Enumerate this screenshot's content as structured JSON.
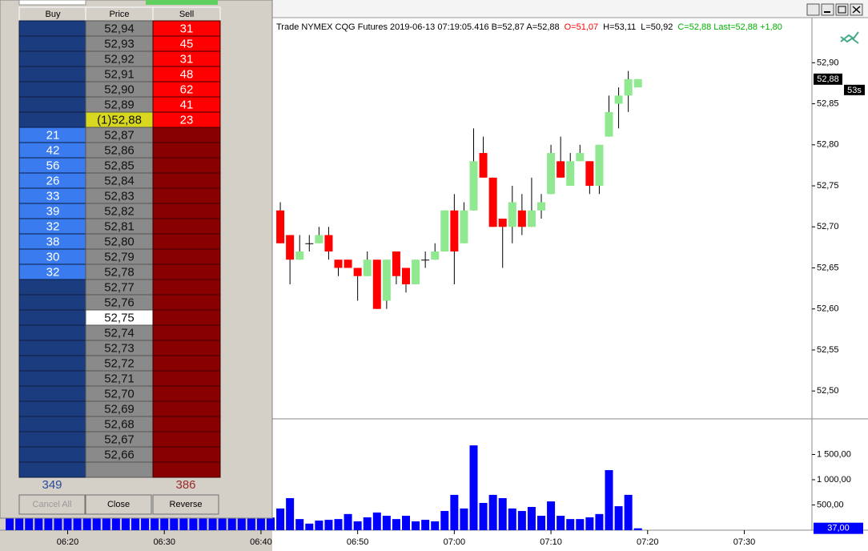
{
  "dom": {
    "columns": [
      "Buy",
      "Price",
      "Sell"
    ],
    "rows": [
      {
        "price": "52,94",
        "sell": 31
      },
      {
        "price": "52,93",
        "sell": 45
      },
      {
        "price": "52,92",
        "sell": 31
      },
      {
        "price": "52,91",
        "sell": 48
      },
      {
        "price": "52,90",
        "sell": 62
      },
      {
        "price": "52,89",
        "sell": 41
      },
      {
        "price": "(1)52,88",
        "sell": 23,
        "current": true
      },
      {
        "buy": 21,
        "price": "52,87"
      },
      {
        "buy": 42,
        "price": "52,86"
      },
      {
        "buy": 56,
        "price": "52,85"
      },
      {
        "buy": 26,
        "price": "52,84"
      },
      {
        "buy": 33,
        "price": "52,83"
      },
      {
        "buy": 39,
        "price": "52,82"
      },
      {
        "buy": 32,
        "price": "52,81"
      },
      {
        "buy": 38,
        "price": "52,80"
      },
      {
        "buy": 30,
        "price": "52,79"
      },
      {
        "buy": 32,
        "price": "52,78"
      },
      {
        "price": "52,77"
      },
      {
        "price": "52,76"
      },
      {
        "price": "52,75",
        "selected": true
      },
      {
        "price": "52,74"
      },
      {
        "price": "52,73"
      },
      {
        "price": "52,72"
      },
      {
        "price": "52,71"
      },
      {
        "price": "52,70"
      },
      {
        "price": "52,69"
      },
      {
        "price": "52,68"
      },
      {
        "price": "52,67"
      },
      {
        "price": "52,66"
      }
    ],
    "buy_total": 349,
    "sell_total": 386,
    "buttons": [
      "Cancel All",
      "Close",
      "Reverse"
    ]
  },
  "chart_data": {
    "type": "candlestick",
    "header": [
      {
        "text": "Trade NYMEX CQG Futures 2019-06-13 07:19:05.416 B=52,87 A=52,88",
        "color": "#000000"
      },
      {
        "text": "O=51,07",
        "color": "#ff0000"
      },
      {
        "text": "H=53,11",
        "color": "#000000"
      },
      {
        "text": "L=50,92",
        "color": "#000000"
      },
      {
        "text": "C=52,88 Last=52,88 +1,80",
        "color": "#00b000"
      }
    ],
    "x": [
      "06:42",
      "06:43",
      "06:44",
      "06:45",
      "06:46",
      "06:47",
      "06:48",
      "06:49",
      "06:50",
      "06:51",
      "06:52",
      "06:53",
      "06:54",
      "06:55",
      "06:56",
      "06:57",
      "06:58",
      "06:59",
      "07:00",
      "07:01",
      "07:02",
      "07:03",
      "07:04",
      "07:05",
      "07:06",
      "07:07",
      "07:08",
      "07:09",
      "07:10",
      "07:11",
      "07:12",
      "07:13",
      "07:14",
      "07:15",
      "07:16",
      "07:17",
      "07:18",
      "07:19"
    ],
    "open": [
      52.72,
      52.69,
      52.66,
      52.68,
      52.68,
      52.69,
      52.66,
      52.66,
      52.65,
      52.64,
      52.66,
      52.61,
      52.67,
      52.65,
      52.63,
      52.66,
      52.66,
      52.67,
      52.72,
      52.68,
      52.72,
      52.79,
      52.76,
      52.71,
      52.7,
      52.72,
      52.7,
      52.72,
      52.74,
      52.78,
      52.75,
      52.78,
      52.78,
      52.75,
      52.81,
      52.85,
      52.86,
      52.87
    ],
    "high": [
      52.73,
      52.69,
      52.69,
      52.69,
      52.7,
      52.7,
      52.66,
      52.66,
      52.65,
      52.67,
      52.66,
      52.66,
      52.67,
      52.65,
      52.66,
      52.67,
      52.68,
      52.72,
      52.74,
      52.73,
      52.82,
      52.81,
      52.76,
      52.71,
      52.75,
      52.74,
      52.76,
      52.74,
      52.8,
      52.81,
      52.79,
      52.8,
      52.78,
      52.8,
      52.86,
      52.87,
      52.89,
      52.88
    ],
    "low": [
      52.68,
      52.63,
      52.66,
      52.67,
      52.68,
      52.66,
      52.64,
      52.65,
      52.61,
      52.64,
      52.6,
      52.6,
      52.63,
      52.62,
      52.63,
      52.65,
      52.66,
      52.67,
      52.63,
      52.68,
      52.72,
      52.76,
      52.7,
      52.65,
      52.68,
      52.69,
      52.7,
      52.71,
      52.74,
      52.76,
      52.75,
      52.78,
      52.74,
      52.74,
      52.81,
      52.82,
      52.84,
      52.87
    ],
    "close": [
      52.68,
      52.66,
      52.67,
      52.68,
      52.69,
      52.67,
      52.65,
      52.65,
      52.64,
      52.66,
      52.6,
      52.66,
      52.64,
      52.63,
      52.66,
      52.66,
      52.67,
      52.72,
      52.67,
      52.72,
      52.78,
      52.76,
      52.7,
      52.7,
      52.73,
      52.7,
      52.72,
      52.73,
      52.79,
      52.76,
      52.78,
      52.79,
      52.75,
      52.8,
      52.84,
      52.86,
      52.88,
      52.88
    ],
    "up_color": "#90e890",
    "down_color": "#ff0000",
    "xlim": [
      "06:13",
      "07:37"
    ],
    "xticks": [
      "06:20",
      "06:30",
      "06:40",
      "06:50",
      "07:00",
      "07:10",
      "07:20",
      "07:30"
    ],
    "ylim": [
      52.467,
      52.955
    ],
    "yticks": [
      {
        "value": 52.5,
        "label": "52,50"
      },
      {
        "value": 52.55,
        "label": "52,55"
      },
      {
        "value": 52.6,
        "label": "52,60"
      },
      {
        "value": 52.65,
        "label": "52,65"
      },
      {
        "value": 52.7,
        "label": "52,70"
      },
      {
        "value": 52.75,
        "label": "52,75"
      },
      {
        "value": 52.8,
        "label": "52,80"
      },
      {
        "value": 52.85,
        "label": "52,85"
      },
      {
        "value": 52.9,
        "label": "52,90"
      }
    ],
    "last_price": {
      "value": 52.88,
      "label": "52,88"
    },
    "bar_timer": "53s",
    "volume": {
      "color": "#0000ff",
      "x": [
        "06:14",
        "06:15",
        "06:16",
        "06:17",
        "06:18",
        "06:19",
        "06:20",
        "06:21",
        "06:22",
        "06:23",
        "06:24",
        "06:25",
        "06:26",
        "06:27",
        "06:28",
        "06:29",
        "06:30",
        "06:31",
        "06:32",
        "06:33",
        "06:34",
        "06:35",
        "06:36",
        "06:37",
        "06:38",
        "06:39",
        "06:40",
        "06:41",
        "06:42",
        "06:43",
        "06:44",
        "06:45",
        "06:46",
        "06:47",
        "06:48",
        "06:49",
        "06:50",
        "06:51",
        "06:52",
        "06:53",
        "06:54",
        "06:55",
        "06:56",
        "06:57",
        "06:58",
        "06:59",
        "07:00",
        "07:01",
        "07:02",
        "07:03",
        "07:04",
        "07:05",
        "07:06",
        "07:07",
        "07:08",
        "07:09",
        "07:10",
        "07:11",
        "07:12",
        "07:13",
        "07:14",
        "07:15",
        "07:16",
        "07:17",
        "07:18",
        "07:19"
      ],
      "values": [
        250,
        250,
        250,
        250,
        250,
        250,
        250,
        250,
        250,
        250,
        250,
        250,
        250,
        250,
        250,
        250,
        250,
        250,
        250,
        250,
        250,
        250,
        250,
        250,
        250,
        250,
        250,
        250,
        430,
        635,
        220,
        130,
        190,
        205,
        220,
        320,
        175,
        255,
        350,
        285,
        220,
        285,
        175,
        205,
        175,
        380,
        700,
        430,
        1680,
        540,
        700,
        635,
        430,
        380,
        460,
        285,
        570,
        285,
        220,
        220,
        255,
        320,
        1190,
        475,
        700,
        37
      ],
      "ylim": [
        0,
        2190
      ],
      "yticks": [
        {
          "value": 500,
          "label": "500,00"
        },
        {
          "value": 1000,
          "label": "1 000,00"
        },
        {
          "value": 1500,
          "label": "1 500,00"
        }
      ],
      "last": {
        "value": 37,
        "label": "37,00"
      }
    }
  }
}
